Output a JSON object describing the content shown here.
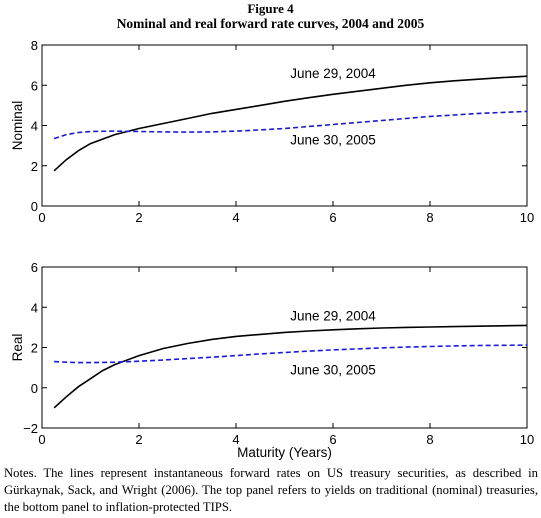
{
  "figure": {
    "label": "Figure 4",
    "title": "Nominal and real forward rate curves, 2004 and 2005"
  },
  "chart_data": [
    {
      "type": "line",
      "panel": "top",
      "ylabel": "Nominal",
      "xlabel": "",
      "xlim": [
        0,
        10
      ],
      "ylim": [
        0,
        8
      ],
      "xticks": [
        0,
        2,
        4,
        6,
        8,
        10
      ],
      "yticks": [
        0,
        2,
        4,
        6,
        8
      ],
      "grid": false,
      "series": [
        {
          "color": "#000000",
          "style": "solid",
          "x": [
            0.25,
            0.5,
            0.75,
            1,
            1.5,
            2,
            2.5,
            3,
            3.5,
            4,
            4.5,
            5,
            5.5,
            6,
            6.5,
            7,
            7.5,
            8,
            8.5,
            9,
            9.5,
            10
          ],
          "y": [
            1.75,
            2.3,
            2.75,
            3.1,
            3.55,
            3.85,
            4.1,
            4.35,
            4.6,
            4.8,
            5.0,
            5.2,
            5.38,
            5.55,
            5.7,
            5.85,
            6.0,
            6.12,
            6.22,
            6.3,
            6.38,
            6.45
          ]
        },
        {
          "color": "#1a1ad6",
          "style": "dashed",
          "x": [
            0.25,
            0.5,
            0.75,
            1,
            1.5,
            2,
            2.5,
            3,
            3.5,
            4,
            4.5,
            5,
            5.5,
            6,
            6.5,
            7,
            7.5,
            8,
            8.5,
            9,
            9.5,
            10
          ],
          "y": [
            3.35,
            3.55,
            3.65,
            3.7,
            3.72,
            3.7,
            3.68,
            3.67,
            3.68,
            3.72,
            3.78,
            3.85,
            3.95,
            4.05,
            4.15,
            4.25,
            4.35,
            4.45,
            4.52,
            4.6,
            4.65,
            4.7
          ]
        }
      ],
      "annotations": [
        {
          "text": "June 29, 2004",
          "x": 6.0,
          "y": 6.6
        },
        {
          "text": "June 30, 2005",
          "x": 6.0,
          "y": 3.3
        }
      ]
    },
    {
      "type": "line",
      "panel": "bottom",
      "ylabel": "Real",
      "xlabel": "Maturity (Years)",
      "xlim": [
        0,
        10
      ],
      "ylim": [
        -2,
        6
      ],
      "xticks": [
        0,
        2,
        4,
        6,
        8,
        10
      ],
      "yticks": [
        -2,
        0,
        2,
        4,
        6
      ],
      "grid": false,
      "series": [
        {
          "color": "#000000",
          "style": "solid",
          "x": [
            0.25,
            0.5,
            0.75,
            1,
            1.25,
            1.5,
            2,
            2.5,
            3,
            3.5,
            4,
            4.5,
            5,
            5.5,
            6,
            6.5,
            7,
            7.5,
            8,
            8.5,
            9,
            9.5,
            10
          ],
          "y": [
            -1.0,
            -0.45,
            0.05,
            0.45,
            0.85,
            1.15,
            1.6,
            1.95,
            2.2,
            2.4,
            2.55,
            2.65,
            2.75,
            2.82,
            2.88,
            2.93,
            2.97,
            3.0,
            3.02,
            3.04,
            3.06,
            3.08,
            3.1
          ]
        },
        {
          "color": "#1a1ad6",
          "style": "dashed",
          "x": [
            0.25,
            0.5,
            0.75,
            1,
            1.5,
            2,
            2.5,
            3,
            3.5,
            4,
            4.5,
            5,
            5.5,
            6,
            6.5,
            7,
            7.5,
            8,
            8.5,
            9,
            9.5,
            10
          ],
          "y": [
            1.3,
            1.27,
            1.25,
            1.25,
            1.27,
            1.32,
            1.38,
            1.45,
            1.52,
            1.6,
            1.68,
            1.75,
            1.82,
            1.88,
            1.93,
            1.98,
            2.02,
            2.05,
            2.08,
            2.1,
            2.11,
            2.12
          ]
        }
      ],
      "annotations": [
        {
          "text": "June 29, 2004",
          "x": 6.0,
          "y": 3.6
        },
        {
          "text": "June 30, 2005",
          "x": 6.0,
          "y": 0.9
        }
      ]
    }
  ],
  "notes": "Notes. The lines represent instantaneous forward rates on US treasury securities, as described in Gürkaynak, Sack, and Wright (2006). The top panel refers to yields on traditional (nominal) treasuries, the bottom panel to inflation-protected TIPS."
}
